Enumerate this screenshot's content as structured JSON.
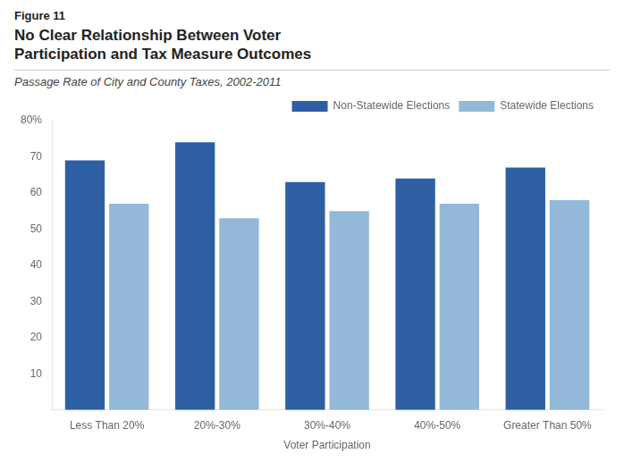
{
  "chart_data": {
    "type": "bar",
    "annotations": [
      "Figure 11"
    ],
    "title": "No Clear Relationship Between Voter\nParticipation and Tax Measure Outcomes",
    "subtitle": "Passage Rate of City and County Taxes, 2002-2011",
    "x_label": "Voter Participation",
    "categories": [
      "Less Than 20%",
      "20%-30%",
      "30%-40%",
      "40%-50%",
      "Greater Than 50%"
    ],
    "series": [
      {
        "name": "Non-Statewide Elections",
        "color": "#2E5FA3",
        "values": [
          69,
          74,
          63,
          64,
          67
        ]
      },
      {
        "name": "Statewide Elections",
        "color": "#93B8D8",
        "values": [
          57,
          53,
          55,
          57,
          58
        ]
      }
    ],
    "ylim": [
      0,
      80
    ],
    "yticks": [
      10,
      20,
      30,
      40,
      50,
      60,
      70,
      {
        "value": 80,
        "label": "80%"
      }
    ],
    "grid": false,
    "legend": "upper right"
  }
}
